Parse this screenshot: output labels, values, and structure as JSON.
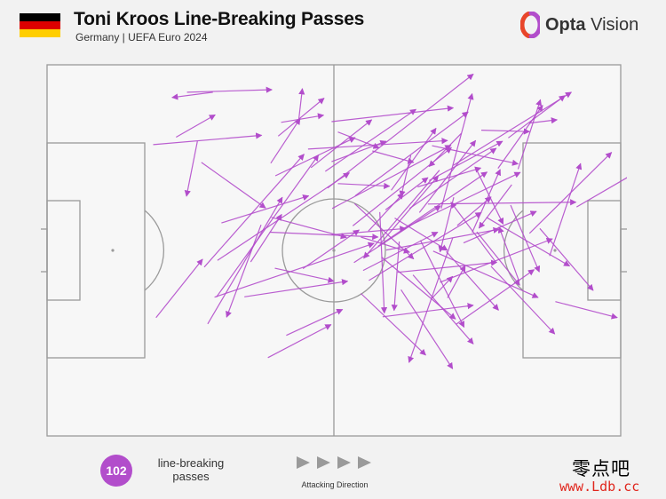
{
  "header": {
    "title": "Toni Kroos Line-Breaking Passes",
    "subtitle": "Germany | UEFA Euro 2024",
    "flag_colors": [
      "#000000",
      "#dd0000",
      "#ffce00"
    ]
  },
  "brand": {
    "name_bold": "Opta",
    "name_light": " Vision",
    "logo_colors": [
      "#e8452a",
      "#b24dcb"
    ]
  },
  "colors": {
    "pass_arrow": "#b24dcb",
    "pitch_line": "#9a9a9a",
    "pitch_fill": "#f7f7f7",
    "background": "#f2f2f2"
  },
  "footer": {
    "count": "102",
    "count_label_line1": "line-breaking",
    "count_label_line2": "passes",
    "direction_label": "Attacking Direction"
  },
  "watermark": {
    "chinese": "零点吧",
    "url": "www.Ldb.cc"
  },
  "chart_data": {
    "type": "scatter",
    "x_range": [
      0,
      100
    ],
    "y_range": [
      0,
      100
    ],
    "legend": "none",
    "passes": [
      [
        24.4,
        92.6,
        39.2,
        93.3
      ],
      [
        28.9,
        92.6,
        21.8,
        91.2
      ],
      [
        18.5,
        78.5,
        37.4,
        81.0
      ],
      [
        22.5,
        80.5,
        29.3,
        86.5
      ],
      [
        26.2,
        79.4,
        24.3,
        64.6
      ],
      [
        26.9,
        73.7,
        38.1,
        61.4
      ],
      [
        19.0,
        31.9,
        27.1,
        47.6
      ],
      [
        28.0,
        30.2,
        41.0,
        64.3
      ],
      [
        27.4,
        45.5,
        44.8,
        75.9
      ],
      [
        29.5,
        37.4,
        47.3,
        75.7
      ],
      [
        29.7,
        47.3,
        52.7,
        70.9
      ],
      [
        29.2,
        37.4,
        57.0,
        51.9
      ],
      [
        30.4,
        57.4,
        45.6,
        64.7
      ],
      [
        37.3,
        56.9,
        31.3,
        32.0
      ],
      [
        38.8,
        54.9,
        57.7,
        53.6
      ],
      [
        35.5,
        46.9,
        40.9,
        59.7
      ],
      [
        39.1,
        58.9,
        52.2,
        53.5
      ],
      [
        39.7,
        45.2,
        50.0,
        41.7
      ],
      [
        34.4,
        37.5,
        52.4,
        41.7
      ],
      [
        38.5,
        21.1,
        49.5,
        30.0
      ],
      [
        39.8,
        70.1,
        53.7,
        80.4
      ],
      [
        39.0,
        73.5,
        44.1,
        85.5
      ],
      [
        40.3,
        80.8,
        48.3,
        91.0
      ],
      [
        40.8,
        84.5,
        48.2,
        86.4
      ],
      [
        43.8,
        84.1,
        44.5,
        93.6
      ],
      [
        45.5,
        77.3,
        69.8,
        79.6
      ],
      [
        46.0,
        72.3,
        56.6,
        85.2
      ],
      [
        49.6,
        84.7,
        70.8,
        88.4
      ],
      [
        48.5,
        71.3,
        64.3,
        88.0
      ],
      [
        49.6,
        73.9,
        59.1,
        79.4
      ],
      [
        50.7,
        81.9,
        57.9,
        77.6
      ],
      [
        50.7,
        68.0,
        59.7,
        67.3
      ],
      [
        48.9,
        66.8,
        74.3,
        97.5
      ],
      [
        49.7,
        61.3,
        70.4,
        78.3
      ],
      [
        53.6,
        62.6,
        63.9,
        47.7
      ],
      [
        53.7,
        64.7,
        73.4,
        87.3
      ],
      [
        53.3,
        56.6,
        70.5,
        77.7
      ],
      [
        56.0,
        55.2,
        62.1,
        65.4
      ],
      [
        54.7,
        53.6,
        63.2,
        49.5
      ],
      [
        53.5,
        46.7,
        68.6,
        62.0
      ],
      [
        55.1,
        44.6,
        68.1,
        54.9
      ],
      [
        56.1,
        41.9,
        75.7,
        60.2
      ],
      [
        58.1,
        51.8,
        68.2,
        70.1
      ],
      [
        57.7,
        51.1,
        76.7,
        71.1
      ],
      [
        59.1,
        50.1,
        78.8,
        55.7
      ],
      [
        60.6,
        58.7,
        69.8,
        50.0
      ],
      [
        58.3,
        48.2,
        71.2,
        31.5
      ],
      [
        61.1,
        44.1,
        78.4,
        46.8
      ],
      [
        63.2,
        61.3,
        78.3,
        77.5
      ],
      [
        64.6,
        67.1,
        75.6,
        72.2
      ],
      [
        62.0,
        55.8,
        82.5,
        71.0
      ],
      [
        65.1,
        52.7,
        72.7,
        29.3
      ],
      [
        64.9,
        60.2,
        74.7,
        79.6
      ],
      [
        66.6,
        68.8,
        79.4,
        79.4
      ],
      [
        67.3,
        49.8,
        85.6,
        37.3
      ],
      [
        66.4,
        62.5,
        92.2,
        63.0
      ],
      [
        68.7,
        61.3,
        74.1,
        92.2
      ],
      [
        71.5,
        56.7,
        77.4,
        64.4
      ],
      [
        69.6,
        49.7,
        78.7,
        33.9
      ],
      [
        70.9,
        64.3,
        68.5,
        49.6
      ],
      [
        68.5,
        41.4,
        88.1,
        53.1
      ],
      [
        69.8,
        37.2,
        72.9,
        45.9
      ],
      [
        71.3,
        30.1,
        84.9,
        44.8
      ],
      [
        74.9,
        55.0,
        82.4,
        40.6
      ],
      [
        72.6,
        52.0,
        85.3,
        60.5
      ],
      [
        75.7,
        82.4,
        84.1,
        82.0
      ],
      [
        76.6,
        58.9,
        91.1,
        45.8
      ],
      [
        77.4,
        45.7,
        88.5,
        27.5
      ],
      [
        78.6,
        72.1,
        86.4,
        89.1
      ],
      [
        80.4,
        80.3,
        90.3,
        91.7
      ],
      [
        82.1,
        71.9,
        86.0,
        90.6
      ],
      [
        84.1,
        84.3,
        88.9,
        85.2
      ],
      [
        80.8,
        62.2,
        85.8,
        44.2
      ],
      [
        84.1,
        54.6,
        98.4,
        76.4
      ],
      [
        85.9,
        55.9,
        95.2,
        39.2
      ],
      [
        87.6,
        48.5,
        93.0,
        73.4
      ],
      [
        88.6,
        36.2,
        99.4,
        31.9
      ],
      [
        92.3,
        61.7,
        109.1,
        76.8
      ],
      [
        74.9,
        71.6,
        79.5,
        57.1
      ],
      [
        67.1,
        78.2,
        82.1,
        73.3
      ],
      [
        63.8,
        43.4,
        74.3,
        24.8
      ],
      [
        70.7,
        53.3,
        63.1,
        19.8
      ],
      [
        61.7,
        39.4,
        70.7,
        18.1
      ],
      [
        58.0,
        60.3,
        58.8,
        33.1
      ],
      [
        54.7,
        38.4,
        66.0,
        21.8
      ],
      [
        41.7,
        27.1,
        51.5,
        34.1
      ],
      [
        60.0,
        66.2,
        67.8,
        82.9
      ],
      [
        81.0,
        67.7,
        75.3,
        56.0
      ],
      [
        61.4,
        52.4,
        60.5,
        33.8
      ],
      [
        44.6,
        45.1,
        54.4,
        55.5
      ],
      [
        70.8,
        72.9,
        91.4,
        92.6
      ],
      [
        68.4,
        71.6,
        55.2,
        47.9
      ],
      [
        49.6,
        54.2,
        62.5,
        55.9
      ],
      [
        74.1,
        54.8,
        79.0,
        71.8
      ],
      [
        58.5,
        32.1,
        74.3,
        35.2
      ],
      [
        82.3,
        41.6,
        78.8,
        56.3
      ],
      [
        63.4,
        75.6,
        61.7,
        64.5
      ],
      [
        78.3,
        46.7,
        70.4,
        63.0
      ],
      [
        72.2,
        81.5,
        66.6,
        72.6
      ],
      [
        56.7,
        76.8,
        63.9,
        73.7
      ],
      [
        59.0,
        60.9,
        66.4,
        69.6
      ],
      [
        67.1,
        37.1,
        70.7,
        43.0
      ]
    ]
  }
}
